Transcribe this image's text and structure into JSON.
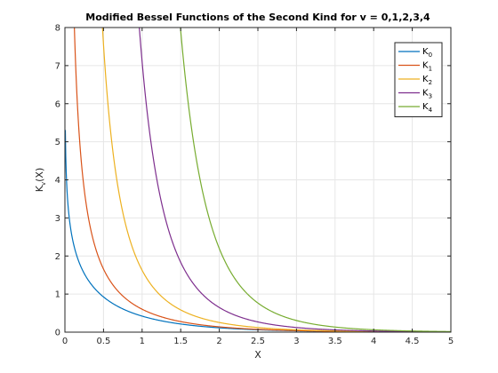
{
  "chart_data": {
    "type": "line",
    "title": "Modified Bessel Functions of the Second Kind for v = 0,1,2,3,4",
    "xlabel": "X",
    "ylabel": {
      "base": "K",
      "sub": "v",
      "suffix": "(X)"
    },
    "xlim": [
      0,
      5
    ],
    "ylim": [
      0,
      8
    ],
    "xticks": [
      0,
      0.5,
      1,
      1.5,
      2,
      2.5,
      3,
      3.5,
      4,
      4.5,
      5
    ],
    "xtick_labels": [
      "0",
      "0.5",
      "1",
      "1.5",
      "2",
      "2.5",
      "3",
      "3.5",
      "4",
      "4.5",
      "5"
    ],
    "yticks": [
      0,
      1,
      2,
      3,
      4,
      5,
      6,
      7,
      8
    ],
    "ytick_labels": [
      "0",
      "1",
      "2",
      "3",
      "4",
      "5",
      "6",
      "7",
      "8"
    ],
    "grid": true,
    "legend_position": "top-right",
    "series": [
      {
        "name": "K",
        "sub": "0",
        "order": 0,
        "color": "#0072bd"
      },
      {
        "name": "K",
        "sub": "1",
        "order": 1,
        "color": "#d95319"
      },
      {
        "name": "K",
        "sub": "2",
        "order": 2,
        "color": "#edb120"
      },
      {
        "name": "K",
        "sub": "3",
        "order": 3,
        "color": "#7e2f8e"
      },
      {
        "name": "K",
        "sub": "4",
        "order": 4,
        "color": "#77ac30"
      }
    ]
  }
}
